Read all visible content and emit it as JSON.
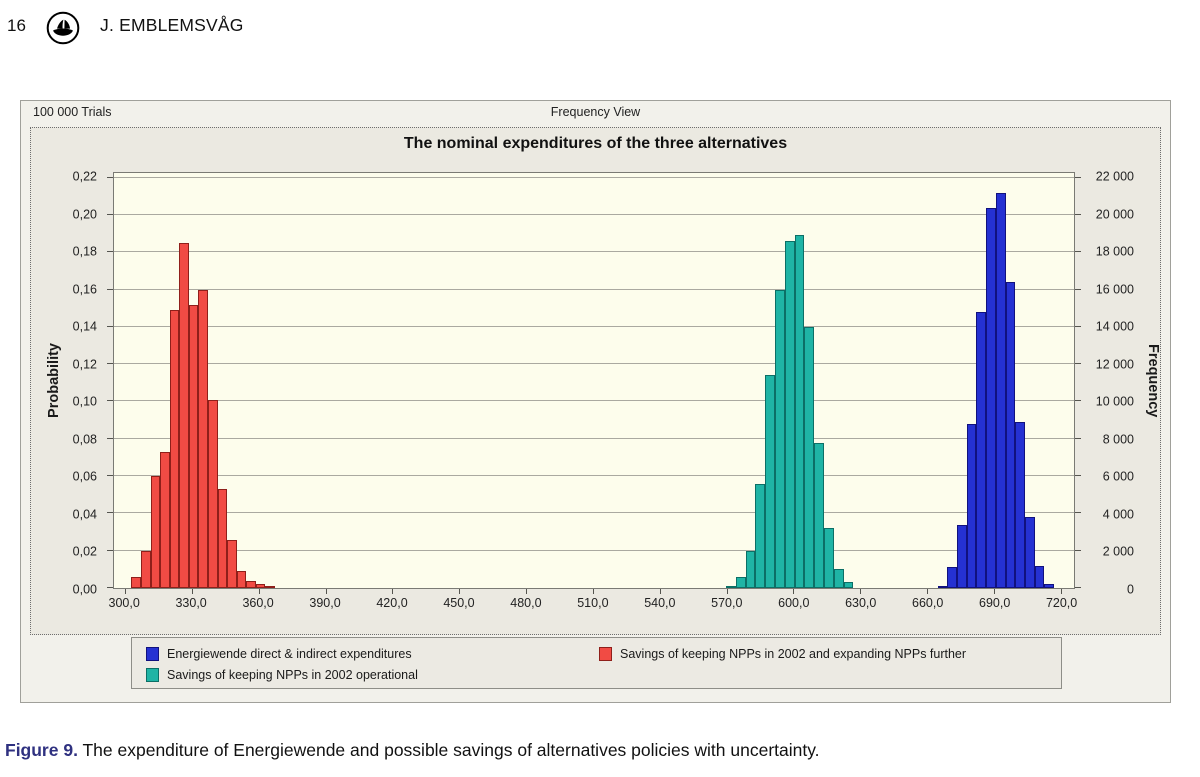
{
  "header": {
    "page_number": "16",
    "running_head": "J. EMBLEMSVÅG",
    "logo": "publisher-ship-logo-icon"
  },
  "window": {
    "trials_label": "100 000 Trials",
    "view_label": "Frequency View"
  },
  "chart_data": {
    "type": "bar",
    "title": "The nominal expenditures of the three alternatives",
    "ylabel_left": "Probability",
    "ylabel_right": "Frequency",
    "grid": true,
    "legend_position": "bottom",
    "plot_bg": "#fdfdec",
    "x_axis": {
      "min": 295,
      "max": 726,
      "ticks": [
        {
          "v": 300,
          "label": "300,0"
        },
        {
          "v": 330,
          "label": "330,0"
        },
        {
          "v": 360,
          "label": "360,0"
        },
        {
          "v": 390,
          "label": "390,0"
        },
        {
          "v": 420,
          "label": "420,0"
        },
        {
          "v": 450,
          "label": "450,0"
        },
        {
          "v": 480,
          "label": "480,0"
        },
        {
          "v": 510,
          "label": "510,0"
        },
        {
          "v": 540,
          "label": "540,0"
        },
        {
          "v": 570,
          "label": "570,0"
        },
        {
          "v": 600,
          "label": "600,0"
        },
        {
          "v": 630,
          "label": "630,0"
        },
        {
          "v": 660,
          "label": "660,0"
        },
        {
          "v": 690,
          "label": "690,0"
        },
        {
          "v": 720,
          "label": "720,0"
        }
      ]
    },
    "y_axis": {
      "scale_max": 0.2225,
      "ticks": [
        {
          "v": 0.0,
          "left": "0,00",
          "right": "0"
        },
        {
          "v": 0.02,
          "left": "0,02",
          "right": "2 000"
        },
        {
          "v": 0.04,
          "left": "0,04",
          "right": "4 000"
        },
        {
          "v": 0.06,
          "left": "0,06",
          "right": "6 000"
        },
        {
          "v": 0.08,
          "left": "0,08",
          "right": "8 000"
        },
        {
          "v": 0.1,
          "left": "0,10",
          "right": "10 000"
        },
        {
          "v": 0.12,
          "left": "0,12",
          "right": "12 000"
        },
        {
          "v": 0.14,
          "left": "0,14",
          "right": "14 000"
        },
        {
          "v": 0.16,
          "left": "0,16",
          "right": "16 000"
        },
        {
          "v": 0.18,
          "left": "0,18",
          "right": "18 000"
        },
        {
          "v": 0.2,
          "left": "0,20",
          "right": "20 000"
        },
        {
          "v": 0.22,
          "left": "0,22",
          "right": "22 000"
        }
      ]
    },
    "series": [
      {
        "name": "Energiewende direct & indirect expenditures",
        "color": "#2531d2",
        "border": "#11117e",
        "bin_start": 664.8,
        "bin_width": 4.35,
        "values": [
          0.001,
          0.011,
          0.034,
          0.088,
          0.148,
          0.204,
          0.212,
          0.164,
          0.089,
          0.038,
          0.012,
          0.002
        ]
      },
      {
        "name": "Savings of keeping NPPs in 2002 and expanding NPPs further",
        "color": "#f14b44",
        "border": "#8f1f1a",
        "bin_start": 302.8,
        "bin_width": 4.3,
        "values": [
          0.006,
          0.02,
          0.06,
          0.073,
          0.149,
          0.185,
          0.152,
          0.16,
          0.101,
          0.053,
          0.026,
          0.009,
          0.004,
          0.002,
          0.001
        ]
      },
      {
        "name": "Savings of keeping NPPs in 2002 operational",
        "color": "#1fb4a5",
        "border": "#0c6f66",
        "bin_start": 569.8,
        "bin_width": 4.4,
        "values": [
          0.001,
          0.006,
          0.02,
          0.056,
          0.114,
          0.16,
          0.186,
          0.189,
          0.14,
          0.078,
          0.032,
          0.01,
          0.003
        ]
      }
    ]
  },
  "caption": {
    "label": "Figure 9.",
    "text": " The expenditure of Energiewende and possible savings of alternatives policies with uncertainty."
  }
}
